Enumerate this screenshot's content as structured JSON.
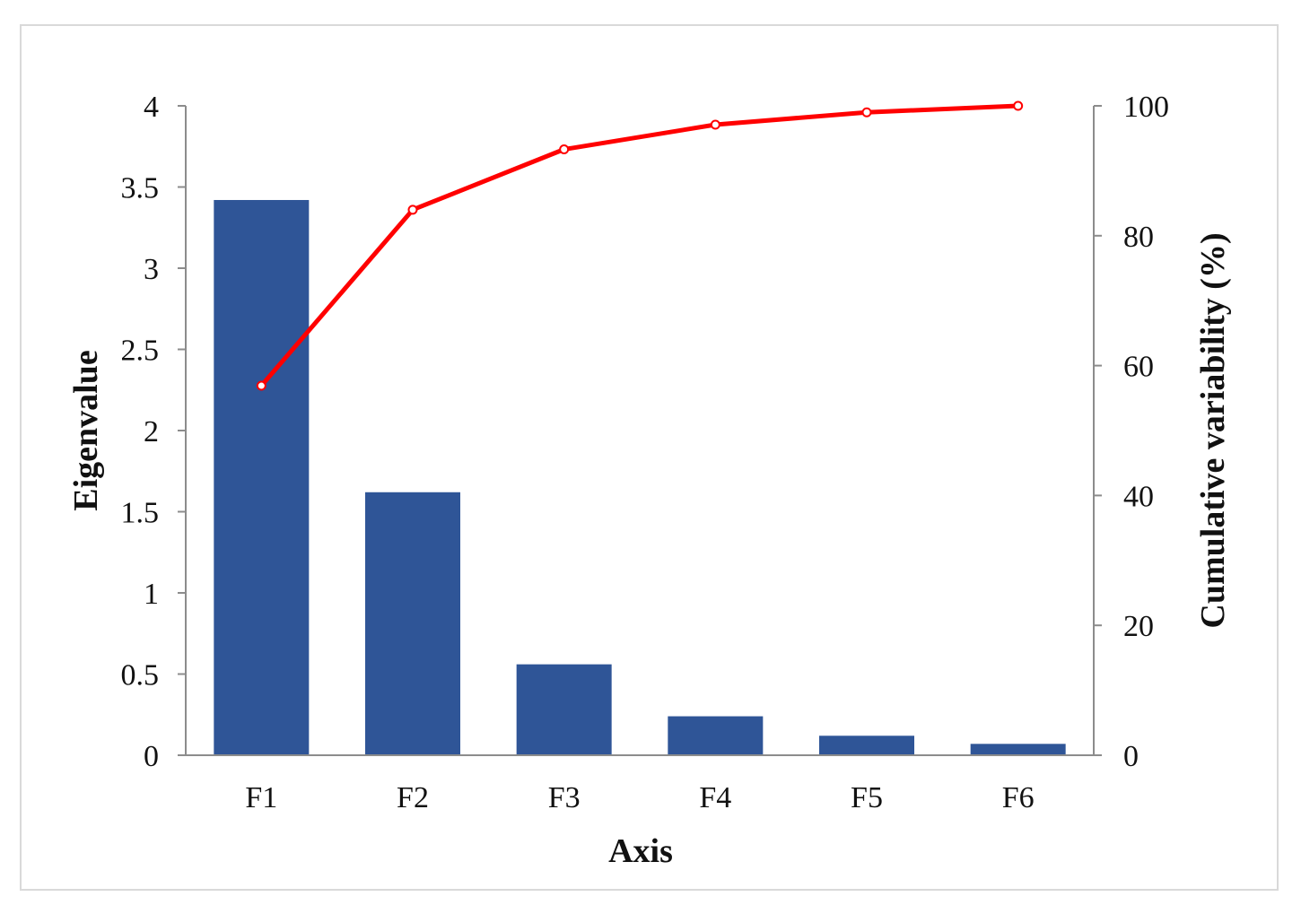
{
  "chart_data": {
    "type": "bar",
    "categories": [
      "F1",
      "F2",
      "F3",
      "F4",
      "F5",
      "F6"
    ],
    "series": [
      {
        "name": "Eigenvalue",
        "type": "bar",
        "axis": "left",
        "color": "#2f5597",
        "values": [
          3.42,
          1.62,
          0.56,
          0.24,
          0.12,
          0.07
        ]
      },
      {
        "name": "Cumulative variability (%)",
        "type": "line",
        "axis": "right",
        "color": "#ff0000",
        "values": [
          56.9,
          84.0,
          93.3,
          97.1,
          99.0,
          100.0
        ]
      }
    ],
    "xlabel": "Axis",
    "ylabel": "Eigenvalue",
    "y2label": "Cumulative variability (%)",
    "ylim": [
      0,
      4
    ],
    "y2lim": [
      0,
      100
    ],
    "yticks": [
      "0",
      "0.5",
      "1",
      "1.5",
      "2",
      "2.5",
      "3",
      "3.5",
      "4"
    ],
    "y2ticks": [
      "0",
      "20",
      "40",
      "60",
      "80",
      "100"
    ],
    "grid": false,
    "legend": "none"
  }
}
